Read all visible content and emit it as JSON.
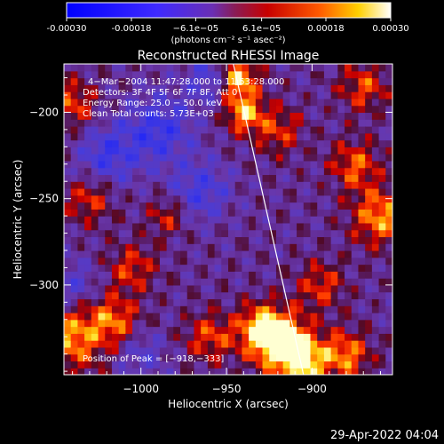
{
  "chart_data": {
    "type": "heatmap",
    "title": "Reconstructed RHESSI Image",
    "xlabel": "Heliocentric X (arcsec)",
    "ylabel": "Heliocentric Y (arcsec)",
    "xlim": [
      -1045,
      -853
    ],
    "ylim": [
      -352,
      -172
    ],
    "x_ticks": [
      -1000,
      -950,
      -900
    ],
    "x_tick_labels": [
      "−1000",
      "−950",
      "−900"
    ],
    "y_ticks": [
      -200,
      -250,
      -300
    ],
    "y_tick_labels": [
      "−200",
      "−250",
      "−300"
    ],
    "colorbar": {
      "ticks": [
        -0.0003,
        -0.00018,
        -6.1e-05,
        6.1e-05,
        0.00018,
        0.0003
      ],
      "tick_labels": [
        "-0.00030",
        "-0.00018",
        "−6.1e−05",
        "6.1e−05",
        "0.00018",
        "0.00030"
      ],
      "label": "(photons cm⁻² s⁻¹ asec⁻²)",
      "range": [
        -0.0003,
        0.0003
      ]
    },
    "annotations": [
      "4−Mar−2004 11:47:28.000 to 11:53:28.000",
      "Detectors: 3F 4F 5F 6F 7F 8F, Att 0",
      "Energy Range: 25.0 − 50.0 keV",
      "Clean     Total counts: 5.73E+03"
    ],
    "peak_label": "Position of Peak = [−918,−333]",
    "peak": [
      -918,
      -333
    ],
    "limb_line": [
      [
        -946,
        -172
      ],
      [
        -905,
        -352
      ]
    ],
    "intensity_regions": [
      {
        "x": -943,
        "y": -180,
        "level": 0.95,
        "r": 8
      },
      {
        "x": -940,
        "y": -200,
        "level": 0.8,
        "r": 8
      },
      {
        "x": -918,
        "y": -333,
        "level": 1.0,
        "r": 12
      },
      {
        "x": -905,
        "y": -345,
        "level": 0.85,
        "r": 10
      },
      {
        "x": -930,
        "y": -325,
        "level": 0.75,
        "r": 10
      },
      {
        "x": -1040,
        "y": -330,
        "level": 0.75,
        "r": 14
      },
      {
        "x": -1015,
        "y": -320,
        "level": 0.6,
        "r": 10
      },
      {
        "x": -960,
        "y": -330,
        "level": 0.55,
        "r": 10
      },
      {
        "x": -880,
        "y": -340,
        "level": 0.7,
        "r": 10
      },
      {
        "x": -860,
        "y": -260,
        "level": 0.75,
        "r": 12
      },
      {
        "x": -875,
        "y": -230,
        "level": 0.6,
        "r": 10
      },
      {
        "x": -870,
        "y": -185,
        "level": 0.55,
        "r": 10
      },
      {
        "x": -1040,
        "y": -195,
        "level": 0.55,
        "r": 10
      },
      {
        "x": -1030,
        "y": -250,
        "level": 0.5,
        "r": 10
      },
      {
        "x": -1005,
        "y": -290,
        "level": 0.5,
        "r": 10
      },
      {
        "x": -985,
        "y": -260,
        "level": 0.45,
        "r": 8
      },
      {
        "x": -895,
        "y": -300,
        "level": 0.5,
        "r": 10
      },
      {
        "x": -920,
        "y": -210,
        "level": 0.5,
        "r": 10
      },
      {
        "x": -990,
        "y": -210,
        "level": -0.6,
        "r": 14
      },
      {
        "x": -1020,
        "y": -225,
        "level": -0.55,
        "r": 12
      },
      {
        "x": -965,
        "y": -245,
        "level": -0.5,
        "r": 12
      },
      {
        "x": -960,
        "y": -180,
        "level": -0.45,
        "r": 10
      },
      {
        "x": -1000,
        "y": -340,
        "level": -0.35,
        "r": 10
      },
      {
        "x": -1040,
        "y": -300,
        "level": -0.4,
        "r": 10
      }
    ]
  },
  "footer": {
    "timestamp": "29-Apr-2022 04:04"
  }
}
